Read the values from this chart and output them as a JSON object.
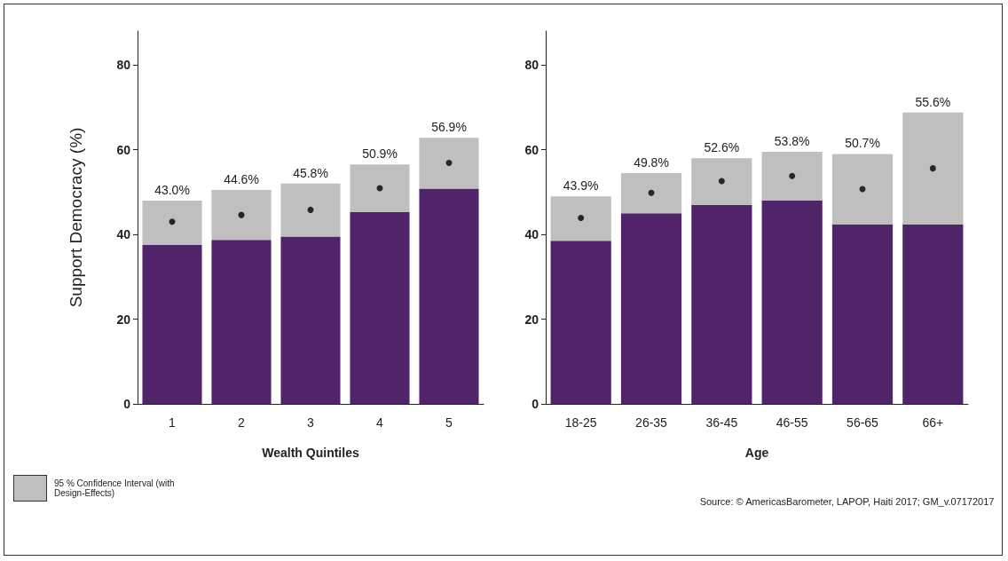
{
  "chart_data": [
    {
      "type": "bar",
      "stacked": true,
      "ylabel": "Support Democracy (%)",
      "xlabel": "Wealth Quintiles",
      "categories": [
        "1",
        "2",
        "3",
        "4",
        "5"
      ],
      "ylim": [
        0,
        88
      ],
      "yticks": [
        0,
        20,
        40,
        60,
        80
      ],
      "grid": false,
      "legend": "bottom left",
      "annotations": [
        {
          "text": "43.0%",
          "x": "1",
          "y": 48.0
        },
        {
          "text": "44.6%",
          "x": "2",
          "y": 50.5
        },
        {
          "text": "45.8%",
          "x": "3",
          "y": 52.0
        },
        {
          "text": "50.9%",
          "x": "4",
          "y": 56.5
        },
        {
          "text": "56.9%",
          "x": "5",
          "y": 62.8
        }
      ],
      "series": [
        {
          "color": "#512469",
          "values": [
            37.5,
            38.7,
            39.5,
            45.3,
            50.8
          ]
        },
        {
          "name": "95 % Confidence Interval (with Design-Effects)",
          "color": "#bfbfbf",
          "values": [
            10.5,
            11.8,
            12.5,
            11.2,
            12.0
          ]
        },
        {
          "type": "scatter",
          "color": "#000000",
          "marker": "circle",
          "x": [
            "1",
            "2",
            "3",
            "4",
            "5"
          ],
          "values": [
            43.0,
            44.6,
            45.8,
            50.9,
            56.9
          ]
        }
      ]
    },
    {
      "type": "bar",
      "stacked": true,
      "xlabel": "Age",
      "categories": [
        "18-25",
        "26-35",
        "36-45",
        "46-55",
        "56-65",
        "66+"
      ],
      "ylim": [
        0,
        88
      ],
      "yticks": [
        0,
        20,
        40,
        60,
        80
      ],
      "grid": false,
      "legend": false,
      "annotations": [
        {
          "text": "43.9%",
          "x": "18-25",
          "y": 49.0
        },
        {
          "text": "49.8%",
          "x": "26-35",
          "y": 54.5
        },
        {
          "text": "52.6%",
          "x": "36-45",
          "y": 58.0
        },
        {
          "text": "53.8%",
          "x": "46-55",
          "y": 59.5
        },
        {
          "text": "50.7%",
          "x": "56-65",
          "y": 59.0
        },
        {
          "text": "55.6%",
          "x": "66+",
          "y": 68.8
        },
        "Source: © AmericasBarometer, LAPOP, Haiti 2017; GM_v.07172017"
      ],
      "series": [
        {
          "color": "#512469",
          "values": [
            38.5,
            45.0,
            47.0,
            48.0,
            42.3,
            42.3
          ]
        },
        {
          "color": "#bfbfbf",
          "values": [
            10.5,
            9.5,
            11.0,
            11.5,
            16.7,
            26.5
          ]
        },
        {
          "type": "scatter",
          "color": "#000000",
          "marker": "circle",
          "x": [
            "18-25",
            "26-35",
            "36-45",
            "46-55",
            "56-65",
            "66+"
          ],
          "values": [
            43.9,
            49.8,
            52.6,
            53.8,
            50.7,
            55.6
          ]
        }
      ]
    }
  ]
}
